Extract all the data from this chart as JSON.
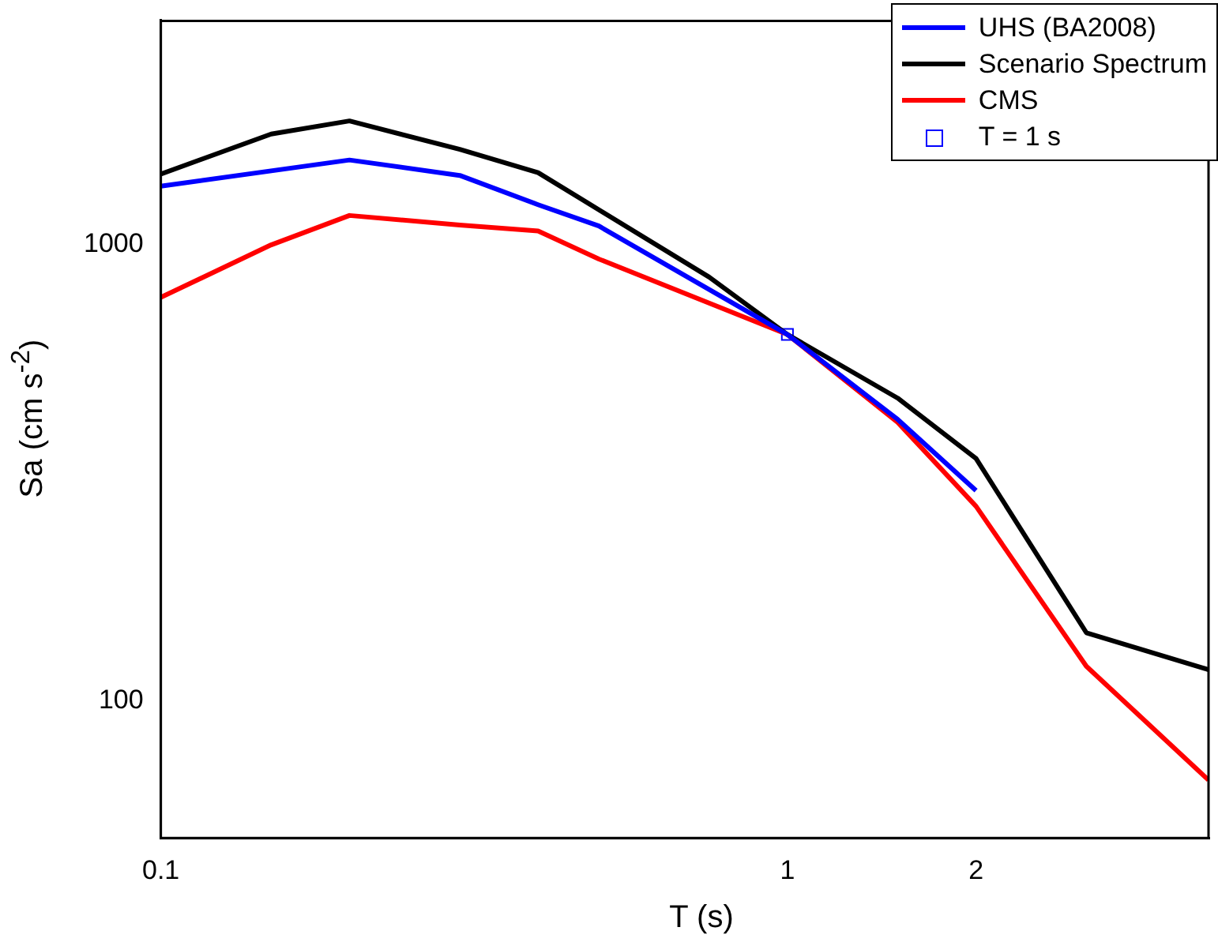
{
  "chart_data": {
    "type": "line",
    "xlabel": "T (s)",
    "ylabel": "Sa (cm s$^{-2}$)",
    "log": "xy",
    "xlim": [
      0.1,
      4.7
    ],
    "ylim": [
      50,
      3100
    ],
    "xticks": [
      0.1,
      1,
      2
    ],
    "yticks": [
      100,
      1000
    ],
    "grid": false,
    "legend": "top right",
    "line_style": "solid",
    "series": [
      {
        "name": "UHS (BA2008)",
        "color": "#0000ff",
        "x": [
          0.1,
          0.2,
          0.3,
          0.4,
          0.5,
          1,
          1.5,
          2
        ],
        "values": [
          1345,
          1535,
          1420,
          1225,
          1100,
          636,
          414,
          289
        ]
      },
      {
        "name": "Scenario Spectrum",
        "color": "#000000",
        "x": [
          0.1,
          0.15,
          0.2,
          0.3,
          0.4,
          0.75,
          1,
          1.5,
          2,
          3,
          4.7
        ],
        "values": [
          1430,
          1750,
          1870,
          1620,
          1440,
          850,
          636,
          461,
          340,
          141,
          117
        ]
      },
      {
        "name": "CMS",
        "color": "#ff0000",
        "x": [
          0.1,
          0.15,
          0.2,
          0.3,
          0.4,
          0.5,
          1,
          1.5,
          2,
          3,
          4.7
        ],
        "values": [
          767,
          1000,
          1160,
          1105,
          1073,
          931,
          636,
          408,
          267,
          119,
          67
        ]
      },
      {
        "name": "T = 1 s",
        "type": "scatter",
        "marker": "square",
        "color": "#0000ff",
        "x": [
          1
        ],
        "values": [
          636
        ]
      }
    ]
  }
}
